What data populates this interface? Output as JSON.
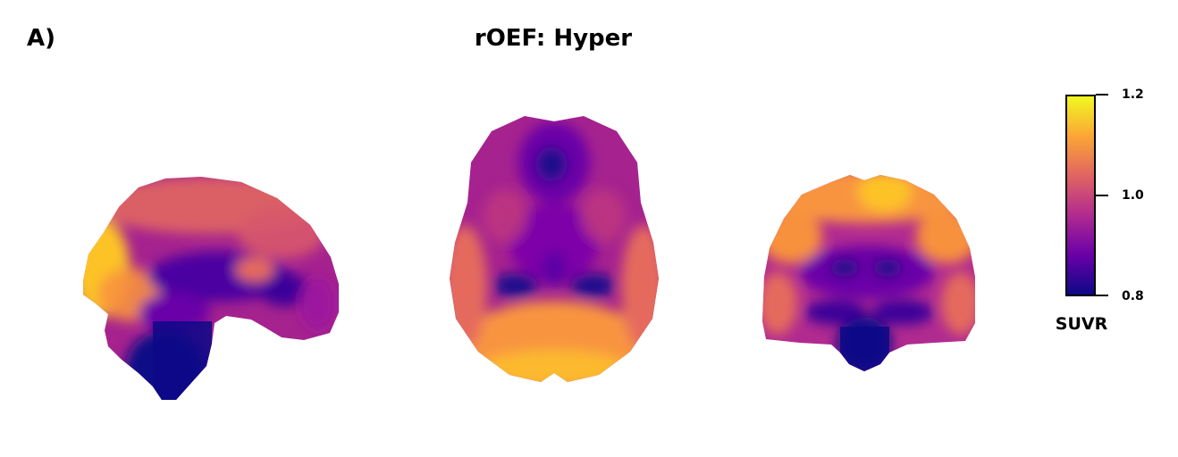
{
  "figure": {
    "panel_label": "A)",
    "title": "rOEF: Hyper"
  },
  "views": [
    {
      "name": "sagittal",
      "description_icon": "sagittal-brain-slice"
    },
    {
      "name": "axial",
      "description_icon": "axial-brain-slice"
    },
    {
      "name": "coronal",
      "description_icon": "coronal-brain-slice"
    }
  ],
  "colorbar": {
    "label": "SUVR",
    "min": 0.8,
    "max": 1.2,
    "ticks": [
      "1.2",
      "1.0",
      "0.8"
    ],
    "tick_values": [
      1.2,
      1.0,
      0.8
    ],
    "colormap": "plasma",
    "colors": [
      "#0d0887",
      "#6a00a8",
      "#b12a90",
      "#e16462",
      "#fca636",
      "#f0f921"
    ]
  }
}
